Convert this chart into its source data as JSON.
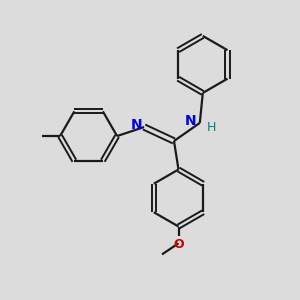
{
  "background_color": "#dcdcdc",
  "bond_color": "#1a1a1a",
  "N_color": "#0000ee",
  "O_color": "#cc0000",
  "H_color": "#008080",
  "figsize": [
    3.0,
    3.0
  ],
  "dpi": 100,
  "xlim": [
    0,
    10
  ],
  "ylim": [
    0,
    10
  ]
}
